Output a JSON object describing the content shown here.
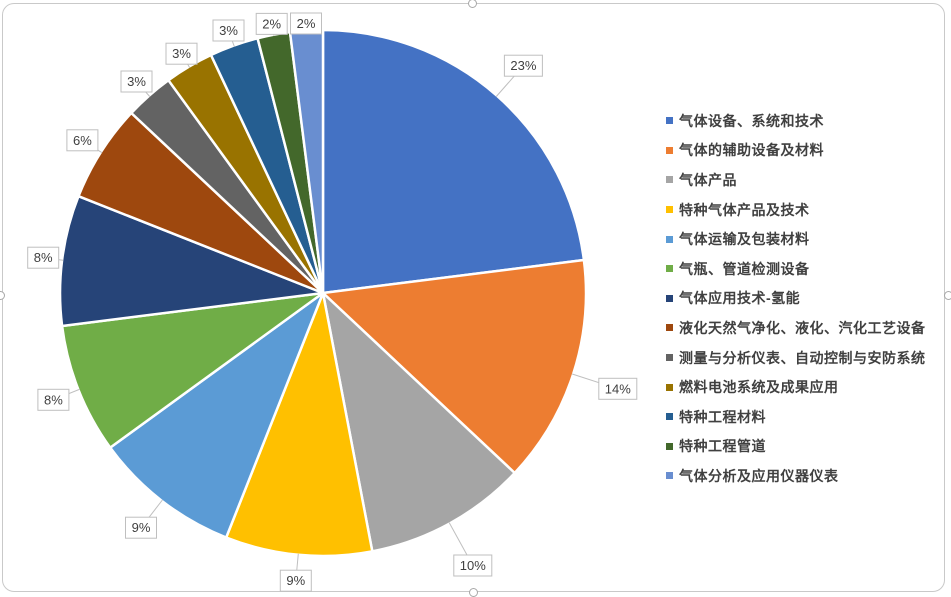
{
  "chart_data": {
    "type": "pie",
    "title": "",
    "legend_position": "right",
    "start_angle_deg": 0,
    "direction": "clockwise",
    "categories": [
      "气体设备、系统和技术",
      "气体的辅助设备及材料",
      "气体产品",
      "特种气体产品及技术",
      "气体运输及包装材料",
      "气瓶、管道检测设备",
      "气体应用技术-氢能",
      "液化天然气净化、液化、汽化工艺设备",
      "测量与分析仪表、自动控制与安防系统",
      "燃料电池系统及成果应用",
      "特种工程材料",
      "特种工程管道",
      "气体分析及应用仪器仪表"
    ],
    "values": [
      23,
      14,
      10,
      9,
      9,
      8,
      8,
      6,
      3,
      3,
      3,
      2,
      2
    ],
    "labels": [
      "23%",
      "14%",
      "10%",
      "9%",
      "9%",
      "8%",
      "8%",
      "6%",
      "3%",
      "3%",
      "3%",
      "2%",
      "2%"
    ],
    "colors": [
      "#4472C4",
      "#ED7D31",
      "#A5A5A5",
      "#FFC000",
      "#5B9BD5",
      "#70AD47",
      "#264478",
      "#9E480E",
      "#636363",
      "#997300",
      "#255E91",
      "#43682B",
      "#698ED0"
    ]
  },
  "ui": {
    "background": "#FFFFFF",
    "frame_border_color": "#C9C9C9",
    "handle_border_color": "#A8A8A8",
    "callout_border_color": "#BFBFBF",
    "callout_fill": "#FFFFFF",
    "leader_line_color": "#BFBFBF",
    "label_text_color": "#404040",
    "legend_text_color": "#404040"
  }
}
